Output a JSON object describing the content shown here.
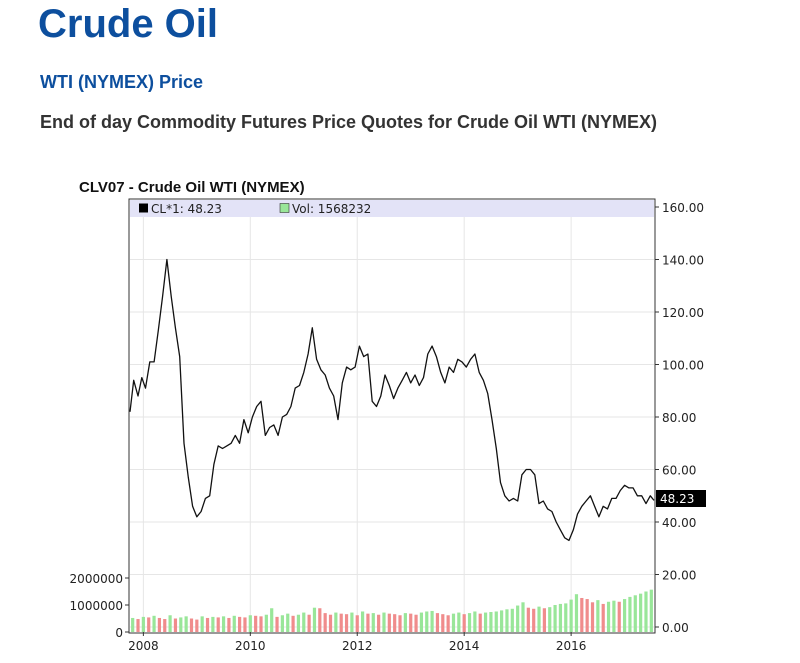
{
  "page": {
    "title": "Crude Oil",
    "subtitle": "WTI (NYMEX) Price",
    "description": "End of day Commodity Futures Price Quotes for Crude Oil WTI (NYMEX)"
  },
  "colors": {
    "price_line": "#111111",
    "volume_up": "#99e699",
    "volume_down": "#f08c8c",
    "legend_band": "#e3e3f7",
    "grid": "#e6e6e6",
    "title_blue": "#0d4f9e"
  },
  "chart_data": {
    "type": "line",
    "title": "CLV07 - Crude Oil WTI (NYMEX)",
    "legend": [
      {
        "marker": "black",
        "text": "CL*1: 48.23"
      },
      {
        "marker": "green",
        "text": "Vol: 1568232"
      }
    ],
    "last_value_label": "48.23",
    "x_ticks": [
      "2008",
      "2010",
      "2012",
      "2014",
      "2016"
    ],
    "x_tick_values": [
      2008,
      2010,
      2012,
      2014,
      2016
    ],
    "xlim": [
      2007.75,
      2017.55
    ],
    "y_ticks": [
      "160.00",
      "140.00",
      "120.00",
      "100.00",
      "80.00",
      "60.00",
      "40.00",
      "20.00",
      "0.00"
    ],
    "y_tick_values": [
      160,
      140,
      120,
      100,
      80,
      60,
      40,
      20,
      0
    ],
    "ylim": [
      0,
      160
    ],
    "volume_ticks": [
      "2000000",
      "1000000",
      "0"
    ],
    "volume_tick_values": [
      2000000,
      1000000,
      0
    ],
    "grid": true,
    "series": [
      {
        "values": [
          [
            2007.75,
            82
          ],
          [
            2007.82,
            94
          ],
          [
            2007.9,
            88
          ],
          [
            2007.97,
            95
          ],
          [
            2008.04,
            91
          ],
          [
            2008.12,
            101
          ],
          [
            2008.2,
            101
          ],
          [
            2008.28,
            113
          ],
          [
            2008.36,
            126
          ],
          [
            2008.44,
            140
          ],
          [
            2008.52,
            126
          ],
          [
            2008.6,
            114
          ],
          [
            2008.68,
            103
          ],
          [
            2008.76,
            70
          ],
          [
            2008.84,
            57
          ],
          [
            2008.92,
            46
          ],
          [
            2009.0,
            42
          ],
          [
            2009.08,
            44
          ],
          [
            2009.16,
            49
          ],
          [
            2009.24,
            50
          ],
          [
            2009.32,
            62
          ],
          [
            2009.4,
            69
          ],
          [
            2009.48,
            68
          ],
          [
            2009.56,
            69
          ],
          [
            2009.64,
            70
          ],
          [
            2009.72,
            73
          ],
          [
            2009.8,
            70
          ],
          [
            2009.88,
            79
          ],
          [
            2009.96,
            74
          ],
          [
            2010.04,
            80
          ],
          [
            2010.12,
            84
          ],
          [
            2010.2,
            86
          ],
          [
            2010.28,
            73
          ],
          [
            2010.36,
            76
          ],
          [
            2010.44,
            77
          ],
          [
            2010.52,
            73
          ],
          [
            2010.6,
            80
          ],
          [
            2010.68,
            81
          ],
          [
            2010.76,
            84
          ],
          [
            2010.84,
            91
          ],
          [
            2010.92,
            92
          ],
          [
            2011.0,
            97
          ],
          [
            2011.08,
            104
          ],
          [
            2011.16,
            114
          ],
          [
            2011.24,
            102
          ],
          [
            2011.32,
            98
          ],
          [
            2011.4,
            96
          ],
          [
            2011.48,
            91
          ],
          [
            2011.56,
            88
          ],
          [
            2011.64,
            79
          ],
          [
            2011.72,
            93
          ],
          [
            2011.8,
            99
          ],
          [
            2011.88,
            98
          ],
          [
            2011.96,
            99
          ],
          [
            2012.04,
            107
          ],
          [
            2012.12,
            103
          ],
          [
            2012.2,
            104
          ],
          [
            2012.28,
            86
          ],
          [
            2012.36,
            84
          ],
          [
            2012.44,
            88
          ],
          [
            2012.52,
            96
          ],
          [
            2012.6,
            92
          ],
          [
            2012.68,
            87
          ],
          [
            2012.76,
            91
          ],
          [
            2012.84,
            94
          ],
          [
            2012.92,
            97
          ],
          [
            2013.0,
            93
          ],
          [
            2013.08,
            96
          ],
          [
            2013.16,
            92
          ],
          [
            2013.24,
            95
          ],
          [
            2013.32,
            104
          ],
          [
            2013.4,
            107
          ],
          [
            2013.48,
            103
          ],
          [
            2013.56,
            97
          ],
          [
            2013.64,
            93
          ],
          [
            2013.72,
            99
          ],
          [
            2013.8,
            97
          ],
          [
            2013.88,
            102
          ],
          [
            2013.96,
            101
          ],
          [
            2014.04,
            99
          ],
          [
            2014.12,
            102
          ],
          [
            2014.2,
            104
          ],
          [
            2014.28,
            97
          ],
          [
            2014.36,
            94
          ],
          [
            2014.44,
            89
          ],
          [
            2014.52,
            79
          ],
          [
            2014.6,
            68
          ],
          [
            2014.68,
            55
          ],
          [
            2014.76,
            50
          ],
          [
            2014.84,
            48
          ],
          [
            2014.92,
            49
          ],
          [
            2015.0,
            48
          ],
          [
            2015.08,
            58
          ],
          [
            2015.16,
            60
          ],
          [
            2015.24,
            60
          ],
          [
            2015.32,
            58
          ],
          [
            2015.4,
            47
          ],
          [
            2015.48,
            48
          ],
          [
            2015.56,
            45
          ],
          [
            2015.64,
            44
          ],
          [
            2015.72,
            40
          ],
          [
            2015.8,
            37
          ],
          [
            2015.88,
            34
          ],
          [
            2015.96,
            33
          ],
          [
            2016.04,
            37
          ],
          [
            2016.12,
            43
          ],
          [
            2016.2,
            46
          ],
          [
            2016.28,
            48
          ],
          [
            2016.36,
            50
          ],
          [
            2016.44,
            46
          ],
          [
            2016.52,
            42
          ],
          [
            2016.6,
            46
          ],
          [
            2016.68,
            45
          ],
          [
            2016.76,
            49
          ],
          [
            2016.84,
            49
          ],
          [
            2016.92,
            52
          ],
          [
            2017.0,
            54
          ],
          [
            2017.08,
            53
          ],
          [
            2017.16,
            53
          ],
          [
            2017.24,
            50
          ],
          [
            2017.32,
            50
          ],
          [
            2017.4,
            47
          ],
          [
            2017.48,
            50
          ],
          [
            2017.55,
            48.23
          ]
        ]
      }
    ],
    "volume": [
      [
        2007.8,
        520000
      ],
      [
        2007.9,
        480000
      ],
      [
        2008.0,
        560000
      ],
      [
        2008.1,
        540000
      ],
      [
        2008.2,
        600000
      ],
      [
        2008.3,
        520000
      ],
      [
        2008.4,
        480000
      ],
      [
        2008.5,
        620000
      ],
      [
        2008.6,
        500000
      ],
      [
        2008.7,
        540000
      ],
      [
        2008.8,
        580000
      ],
      [
        2008.9,
        500000
      ],
      [
        2009.0,
        460000
      ],
      [
        2009.1,
        580000
      ],
      [
        2009.2,
        520000
      ],
      [
        2009.3,
        560000
      ],
      [
        2009.4,
        540000
      ],
      [
        2009.5,
        580000
      ],
      [
        2009.6,
        520000
      ],
      [
        2009.7,
        600000
      ],
      [
        2009.8,
        560000
      ],
      [
        2009.9,
        540000
      ],
      [
        2010.0,
        620000
      ],
      [
        2010.1,
        600000
      ],
      [
        2010.2,
        580000
      ],
      [
        2010.3,
        640000
      ],
      [
        2010.4,
        880000
      ],
      [
        2010.5,
        560000
      ],
      [
        2010.6,
        620000
      ],
      [
        2010.7,
        680000
      ],
      [
        2010.8,
        600000
      ],
      [
        2010.9,
        640000
      ],
      [
        2011.0,
        720000
      ],
      [
        2011.1,
        640000
      ],
      [
        2011.2,
        900000
      ],
      [
        2011.3,
        880000
      ],
      [
        2011.4,
        700000
      ],
      [
        2011.5,
        640000
      ],
      [
        2011.6,
        720000
      ],
      [
        2011.7,
        680000
      ],
      [
        2011.8,
        660000
      ],
      [
        2011.9,
        720000
      ],
      [
        2012.0,
        620000
      ],
      [
        2012.1,
        760000
      ],
      [
        2012.2,
        680000
      ],
      [
        2012.3,
        700000
      ],
      [
        2012.4,
        640000
      ],
      [
        2012.5,
        720000
      ],
      [
        2012.6,
        680000
      ],
      [
        2012.7,
        660000
      ],
      [
        2012.8,
        620000
      ],
      [
        2012.9,
        700000
      ],
      [
        2013.0,
        680000
      ],
      [
        2013.1,
        640000
      ],
      [
        2013.2,
        720000
      ],
      [
        2013.3,
        760000
      ],
      [
        2013.4,
        780000
      ],
      [
        2013.5,
        700000
      ],
      [
        2013.6,
        660000
      ],
      [
        2013.7,
        620000
      ],
      [
        2013.8,
        680000
      ],
      [
        2013.9,
        720000
      ],
      [
        2014.0,
        660000
      ],
      [
        2014.1,
        700000
      ],
      [
        2014.2,
        760000
      ],
      [
        2014.3,
        680000
      ],
      [
        2014.4,
        720000
      ],
      [
        2014.5,
        740000
      ],
      [
        2014.6,
        760000
      ],
      [
        2014.7,
        800000
      ],
      [
        2014.8,
        840000
      ],
      [
        2014.9,
        860000
      ],
      [
        2015.0,
        980000
      ],
      [
        2015.1,
        1100000
      ],
      [
        2015.2,
        900000
      ],
      [
        2015.3,
        860000
      ],
      [
        2015.4,
        940000
      ],
      [
        2015.5,
        880000
      ],
      [
        2015.6,
        920000
      ],
      [
        2015.7,
        1000000
      ],
      [
        2015.8,
        1040000
      ],
      [
        2015.9,
        1060000
      ],
      [
        2016.0,
        1200000
      ],
      [
        2016.1,
        1400000
      ],
      [
        2016.2,
        1260000
      ],
      [
        2016.3,
        1220000
      ],
      [
        2016.4,
        1100000
      ],
      [
        2016.5,
        1180000
      ],
      [
        2016.6,
        1040000
      ],
      [
        2016.7,
        1120000
      ],
      [
        2016.8,
        1160000
      ],
      [
        2016.9,
        1120000
      ],
      [
        2017.0,
        1220000
      ],
      [
        2017.1,
        1300000
      ],
      [
        2017.2,
        1360000
      ],
      [
        2017.3,
        1420000
      ],
      [
        2017.4,
        1500000
      ],
      [
        2017.5,
        1568232
      ]
    ]
  }
}
